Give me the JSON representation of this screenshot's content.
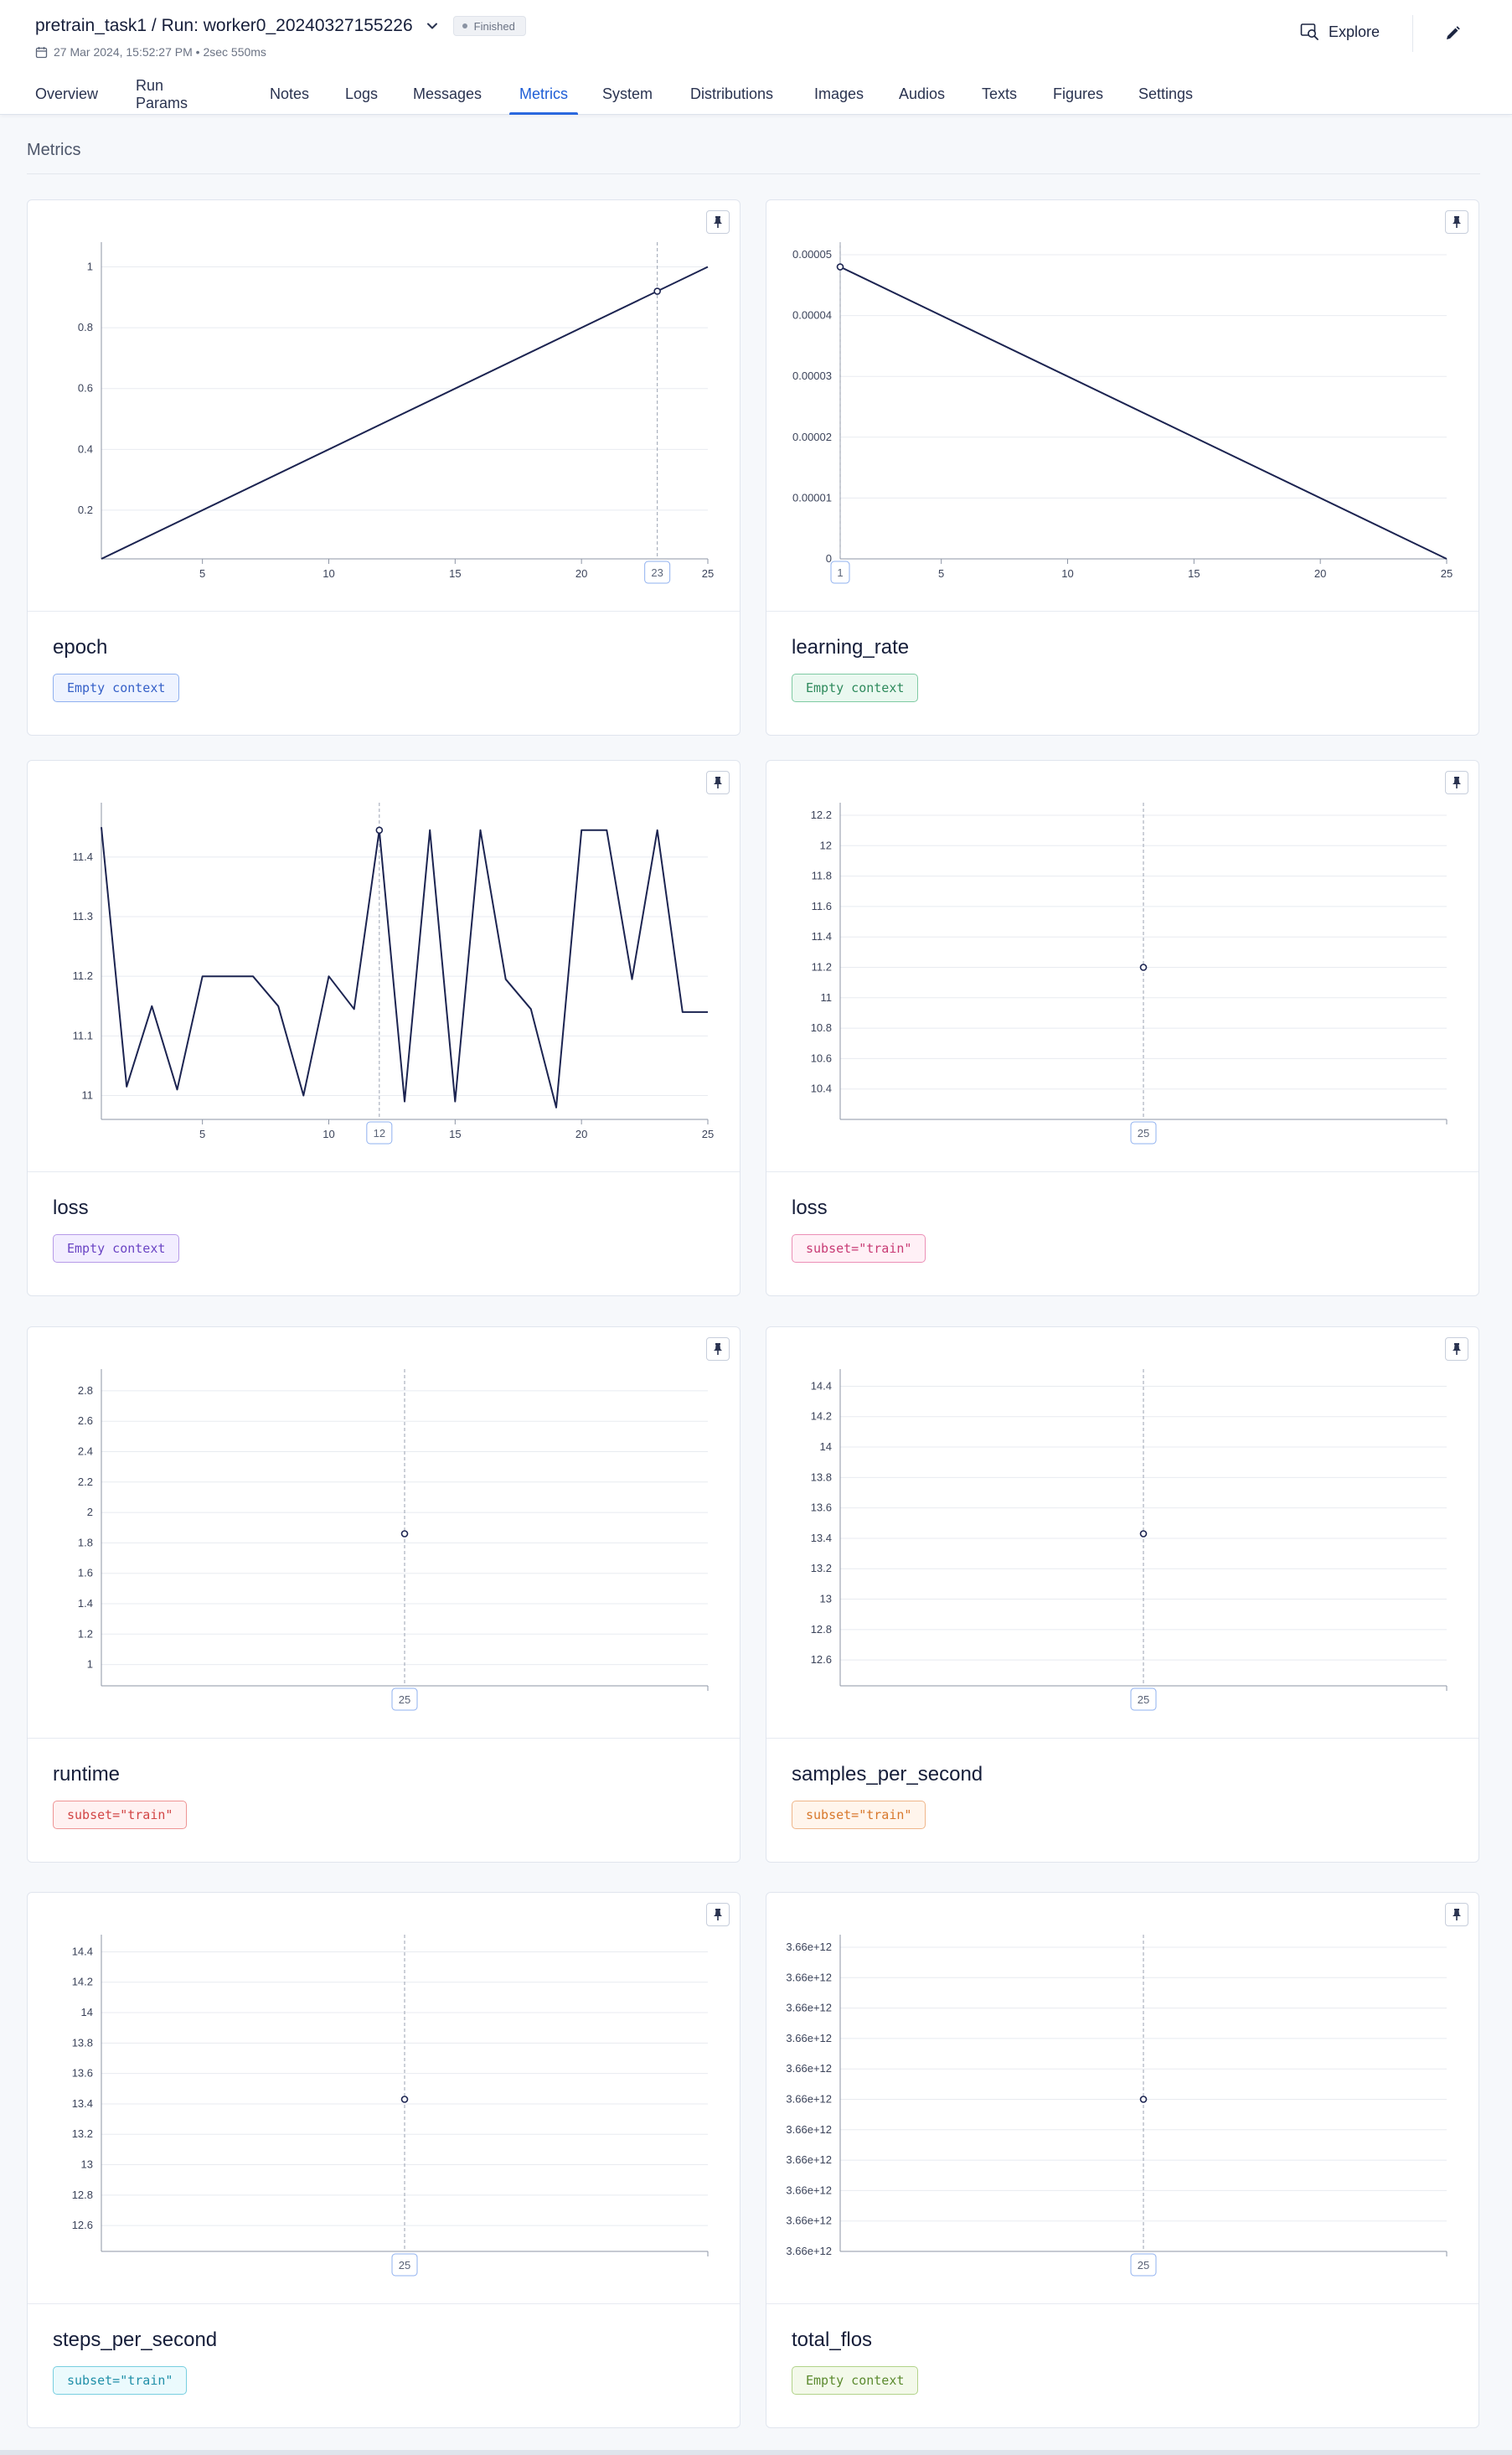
{
  "header": {
    "run_title": "pretrain_task1 / Run: worker0_20240327155226",
    "status": "Finished",
    "meta": "27 Mar 2024, 15:52:27 PM • 2sec 550ms",
    "explore_label": "Explore"
  },
  "tabs": [
    "Overview",
    "Run Params",
    "Notes",
    "Logs",
    "Messages",
    "Metrics",
    "System",
    "Distributions",
    "Images",
    "Audios",
    "Texts",
    "Figures",
    "Settings"
  ],
  "active_tab": "Metrics",
  "section_title": "Metrics",
  "colors": {
    "accent": "#2a68de",
    "line": "#1c2451",
    "grid": "#e8ebf0"
  },
  "cards": [
    {
      "name": "epoch",
      "context": "Empty context",
      "context_style": {
        "fg": "#3560c8",
        "bg": "#eef3ff",
        "border": "#8fb0ef"
      },
      "chart_data": {
        "type": "line",
        "x": [
          1,
          25
        ],
        "y": [
          0.04,
          1
        ],
        "xlim": [
          1,
          25
        ],
        "ylim": [
          0.04,
          1.04
        ],
        "xticks": [
          5,
          10,
          15,
          20,
          25
        ],
        "yticks": [
          0.2,
          0.4,
          0.6,
          0.8,
          1
        ],
        "ytick_labels": [
          "0.2",
          "0.4",
          "0.6",
          "0.8",
          "1"
        ],
        "focus": {
          "x": 23,
          "y": 0.92,
          "label": "23"
        }
      }
    },
    {
      "name": "learning_rate",
      "context": "Empty context",
      "context_style": {
        "fg": "#2e8a5c",
        "bg": "#eaf8f0",
        "border": "#7fcaa3"
      },
      "chart_data": {
        "type": "line",
        "x": [
          1,
          25
        ],
        "y": [
          4.8e-05,
          0
        ],
        "xlim": [
          1,
          25
        ],
        "ylim": [
          0,
          5e-05
        ],
        "xticks": [
          5,
          10,
          15,
          20,
          25
        ],
        "yticks": [
          0,
          1e-05,
          2e-05,
          3e-05,
          4e-05,
          5e-05
        ],
        "ytick_labels": [
          "0",
          "0.00001",
          "0.00002",
          "0.00003",
          "0.00004",
          "0.00005"
        ],
        "focus": {
          "x": 1,
          "y": 4.8e-05,
          "label": "1"
        }
      }
    },
    {
      "name": "loss",
      "context": "Empty context",
      "context_style": {
        "fg": "#6a44c4",
        "bg": "#f2edff",
        "border": "#b69ae8"
      },
      "chart_data": {
        "type": "line",
        "x": [
          1,
          2,
          3,
          4,
          5,
          6,
          7,
          8,
          9,
          10,
          11,
          12,
          13,
          14,
          15,
          16,
          17,
          18,
          19,
          20,
          21,
          22,
          23,
          24,
          25
        ],
        "y": [
          11.45,
          11.015,
          11.15,
          11.01,
          11.2,
          11.2,
          11.2,
          11.15,
          11.0,
          11.2,
          11.145,
          11.445,
          10.99,
          11.445,
          10.99,
          11.445,
          11.195,
          11.145,
          10.98,
          11.445,
          11.445,
          11.195,
          11.445,
          11.14,
          11.14
        ],
        "xlim": [
          1,
          25
        ],
        "ylim": [
          10.96,
          11.47
        ],
        "xticks": [
          5,
          10,
          15,
          20,
          25
        ],
        "yticks": [
          11,
          11.1,
          11.2,
          11.3,
          11.4
        ],
        "ytick_labels": [
          "11",
          "11.1",
          "11.2",
          "11.3",
          "11.4"
        ],
        "focus": {
          "x": 12,
          "y": 11.445,
          "label": "12"
        }
      }
    },
    {
      "name": "loss",
      "context": "subset=\"train\"",
      "context_style": {
        "fg": "#c83a74",
        "bg": "#fff0f6",
        "border": "#eb8fb6"
      },
      "chart_data": {
        "type": "scatter",
        "x": [
          25
        ],
        "y": [
          11.2
        ],
        "xlim": [
          24,
          26
        ],
        "ylim": [
          10.2,
          12.2
        ],
        "xticks": [],
        "yticks": [
          10.4,
          10.6,
          10.8,
          11,
          11.2,
          11.4,
          11.6,
          11.8,
          12,
          12.2
        ],
        "ytick_labels": [
          "10.4",
          "10.6",
          "10.8",
          "11",
          "11.2",
          "11.4",
          "11.6",
          "11.8",
          "12",
          "12.2"
        ],
        "focus": {
          "x": 25,
          "y": 11.2,
          "label": "25"
        }
      }
    },
    {
      "name": "runtime",
      "context": "subset=\"train\"",
      "context_style": {
        "fg": "#d24545",
        "bg": "#fff1f1",
        "border": "#ee9494"
      },
      "chart_data": {
        "type": "scatter",
        "x": [
          25
        ],
        "y": [
          1.86
        ],
        "xlim": [
          24,
          26
        ],
        "ylim": [
          0.86,
          2.86
        ],
        "xticks": [],
        "yticks": [
          1,
          1.2,
          1.4,
          1.6,
          1.8,
          2,
          2.2,
          2.4,
          2.6,
          2.8
        ],
        "ytick_labels": [
          "1",
          "1.2",
          "1.4",
          "1.6",
          "1.8",
          "2",
          "2.2",
          "2.4",
          "2.6",
          "2.8"
        ],
        "focus": {
          "x": 25,
          "y": 1.86,
          "label": "25"
        }
      }
    },
    {
      "name": "samples_per_second",
      "context": "subset=\"train\"",
      "context_style": {
        "fg": "#d8782c",
        "bg": "#fff5ec",
        "border": "#efb68a"
      },
      "chart_data": {
        "type": "scatter",
        "x": [
          25
        ],
        "y": [
          13.43
        ],
        "xlim": [
          24,
          26
        ],
        "ylim": [
          12.43,
          14.43
        ],
        "xticks": [],
        "yticks": [
          12.6,
          12.8,
          13,
          13.2,
          13.4,
          13.6,
          13.8,
          14,
          14.2,
          14.4
        ],
        "ytick_labels": [
          "12.6",
          "12.8",
          "13",
          "13.2",
          "13.4",
          "13.6",
          "13.8",
          "14",
          "14.2",
          "14.4"
        ],
        "focus": {
          "x": 25,
          "y": 13.43,
          "label": "25"
        }
      }
    },
    {
      "name": "steps_per_second",
      "context": "subset=\"train\"",
      "context_style": {
        "fg": "#1f8fa8",
        "bg": "#ebfafd",
        "border": "#78cfe0"
      },
      "chart_data": {
        "type": "scatter",
        "x": [
          25
        ],
        "y": [
          13.43
        ],
        "xlim": [
          24,
          26
        ],
        "ylim": [
          12.43,
          14.43
        ],
        "xticks": [],
        "yticks": [
          12.6,
          12.8,
          13,
          13.2,
          13.4,
          13.6,
          13.8,
          14,
          14.2,
          14.4
        ],
        "ytick_labels": [
          "12.6",
          "12.8",
          "13",
          "13.2",
          "13.4",
          "13.6",
          "13.8",
          "14",
          "14.2",
          "14.4"
        ],
        "focus": {
          "x": 25,
          "y": 13.43,
          "label": "25"
        }
      }
    },
    {
      "name": "total_flos",
      "context": "Empty context",
      "context_style": {
        "fg": "#5b8a2e",
        "bg": "#f3f9ea",
        "border": "#b2d38a"
      },
      "chart_data": {
        "type": "scatter",
        "x": [
          25
        ],
        "y": [
          3660000000000.0
        ],
        "xlim": [
          24,
          26
        ],
        "ylim": [
          3659990000000.0,
          3660010000000.0
        ],
        "xticks": [],
        "yticks": [
          3659990000000.0,
          3659992000000.0,
          3659994000000.0,
          3659996000000.0,
          3659998000000.0,
          3660000000000.0,
          3660002000000.0,
          3660004000000.0,
          3660006000000.0,
          3660008000000.0,
          3660010000000.0
        ],
        "ytick_labels": [
          "3.66e+12",
          "3.66e+12",
          "3.66e+12",
          "3.66e+12",
          "3.66e+12",
          "3.66e+12",
          "3.66e+12",
          "3.66e+12",
          "3.66e+12",
          "3.66e+12",
          "3.66e+12"
        ],
        "focus": {
          "x": 25,
          "y": 3660000000000.0,
          "label": "25"
        }
      }
    }
  ]
}
